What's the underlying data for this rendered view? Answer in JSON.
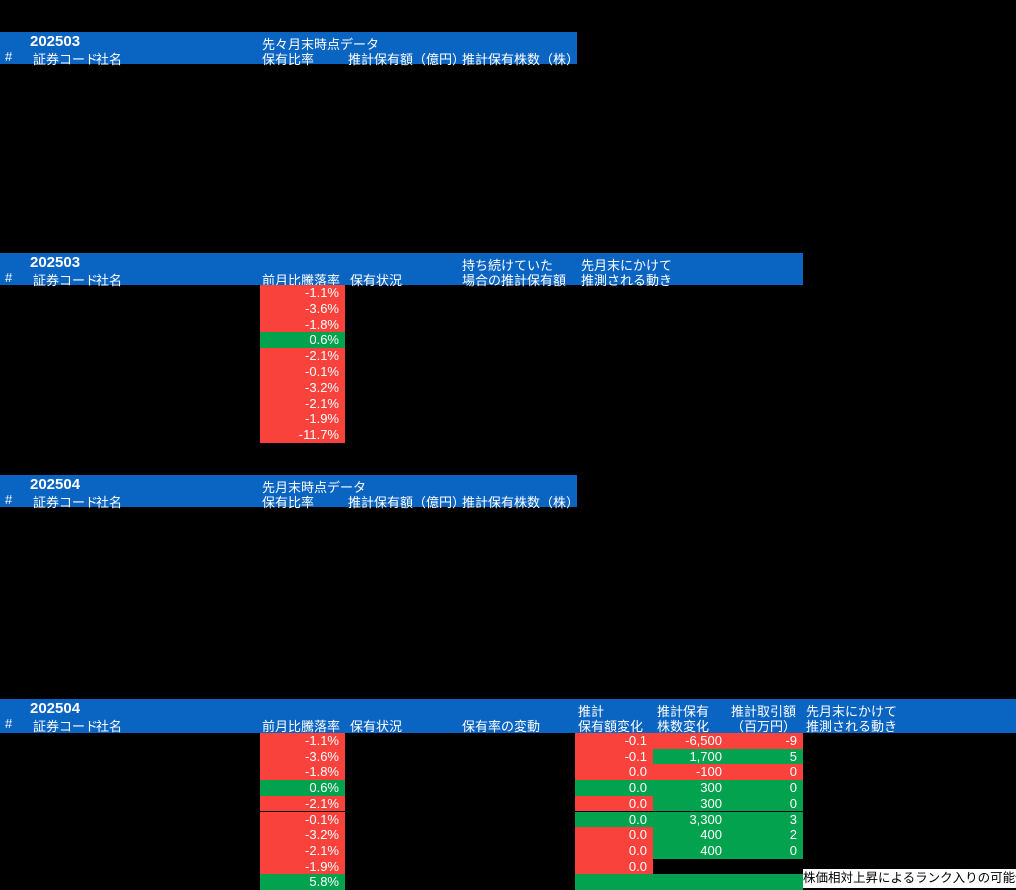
{
  "colors": {
    "page_bg": "#000000",
    "header_bg": "#0a64c2",
    "header_text": "#ffffff",
    "negative": "#fa423d",
    "positive": "#03a24e",
    "cell_text": "#ffffff",
    "note_bg": "#ffffff",
    "note_text": "#000000"
  },
  "tables": {
    "t1": {
      "month": "202503",
      "group": "先々月末時点データ",
      "cols": {
        "hash": "#",
        "code": "証券コード",
        "name": "社名",
        "ratio": "保有比率",
        "amount": "推計保有額（億円）",
        "shares": "推計保有株数（株）"
      }
    },
    "t2": {
      "month": "202503",
      "cols": {
        "hash": "#",
        "code": "証券コード",
        "name": "社名",
        "change": "前月比騰落率",
        "status": "保有状況",
        "hold_line1": "持ち続けていた",
        "hold_line2": "場合の推計保有額",
        "move_line1": "先月末にかけて",
        "move_line2": "推測される動き"
      },
      "rows": [
        {
          "value": "-1.1%",
          "bg": "neg"
        },
        {
          "value": "-3.6%",
          "bg": "neg"
        },
        {
          "value": "-1.8%",
          "bg": "neg"
        },
        {
          "value": "0.6%",
          "bg": "pos"
        },
        {
          "value": "-2.1%",
          "bg": "neg"
        },
        {
          "value": "-0.1%",
          "bg": "neg"
        },
        {
          "value": "-3.2%",
          "bg": "neg"
        },
        {
          "value": "-2.1%",
          "bg": "neg"
        },
        {
          "value": "-1.9%",
          "bg": "neg"
        },
        {
          "value": "-11.7%",
          "bg": "neg"
        }
      ]
    },
    "t3": {
      "month": "202504",
      "group": "先月末時点データ",
      "cols": {
        "hash": "#",
        "code": "証券コード",
        "name": "社名",
        "ratio": "保有比率",
        "amount": "推計保有額（億円）",
        "shares": "推計保有株数（株）"
      }
    },
    "t4": {
      "month": "202504",
      "cols": {
        "hash": "#",
        "code": "証券コード",
        "name": "社名",
        "change": "前月比騰落率",
        "status": "保有状況",
        "ratio_change": "保有率の変動",
        "amt_line1": "推計",
        "amt_line2": "保有額変化",
        "shr_line1": "推計保有",
        "shr_line2": "株数変化",
        "trd_line1": "推計取引額",
        "trd_line2": "（百万円）",
        "move_line1": "先月末にかけて",
        "move_line2": "推測される動き"
      },
      "rows": [
        {
          "pct": "-1.1%",
          "pct_bg": "neg",
          "amt": "-0.1",
          "amt_bg": "neg",
          "shr": "-6,500",
          "shr_bg": "neg",
          "trd": "-9",
          "trd_bg": "neg"
        },
        {
          "pct": "-3.6%",
          "pct_bg": "neg",
          "amt": "-0.1",
          "amt_bg": "neg",
          "shr": "1,700",
          "shr_bg": "pos",
          "trd": "5",
          "trd_bg": "pos"
        },
        {
          "pct": "-1.8%",
          "pct_bg": "neg",
          "amt": "0.0",
          "amt_bg": "neg",
          "shr": "-100",
          "shr_bg": "neg",
          "trd": "0",
          "trd_bg": "neg"
        },
        {
          "pct": "0.6%",
          "pct_bg": "pos",
          "amt": "0.0",
          "amt_bg": "pos",
          "shr": "300",
          "shr_bg": "pos",
          "trd": "0",
          "trd_bg": "pos"
        },
        {
          "pct": "-2.1%",
          "pct_bg": "neg",
          "amt": "0.0",
          "amt_bg": "neg",
          "shr": "300",
          "shr_bg": "pos",
          "trd": "0",
          "trd_bg": "pos"
        },
        {
          "pct": "-0.1%",
          "pct_bg": "neg",
          "amt": "0.0",
          "amt_bg": "pos",
          "shr": "3,300",
          "shr_bg": "pos",
          "trd": "3",
          "trd_bg": "pos"
        },
        {
          "pct": "-3.2%",
          "pct_bg": "neg",
          "amt": "0.0",
          "amt_bg": "neg",
          "shr": "400",
          "shr_bg": "pos",
          "trd": "2",
          "trd_bg": "pos"
        },
        {
          "pct": "-2.1%",
          "pct_bg": "neg",
          "amt": "0.0",
          "amt_bg": "neg",
          "shr": "400",
          "shr_bg": "pos",
          "trd": "0",
          "trd_bg": "pos"
        },
        {
          "pct": "-1.9%",
          "pct_bg": "neg",
          "amt": "0.0",
          "amt_bg": "neg",
          "shr": "",
          "shr_bg": null,
          "trd": "",
          "trd_bg": null
        },
        {
          "pct": "5.8%",
          "pct_bg": "pos",
          "amt": "",
          "amt_bg": "pos",
          "shr": "",
          "shr_bg": "pos",
          "trd": "",
          "trd_bg": "pos"
        }
      ],
      "note": "株価相対上昇によるランク入りの可能性"
    }
  }
}
